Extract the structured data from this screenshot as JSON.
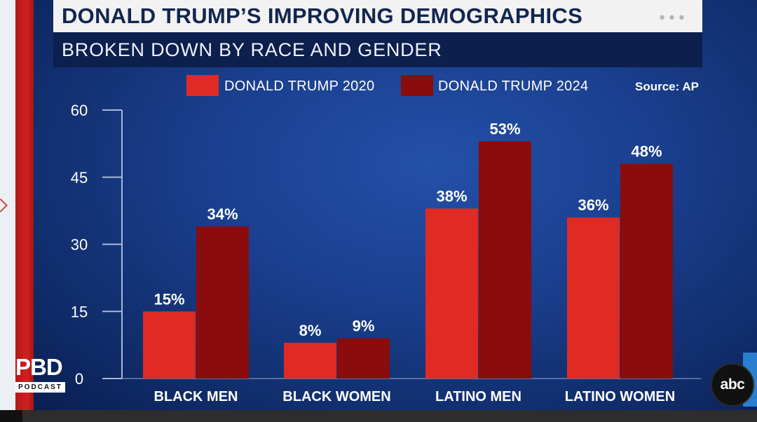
{
  "header": {
    "title": "DONALD TRUMP’S IMPROVING DEMOGRAPHICS",
    "subtitle": "BROKEN DOWN BY RACE AND GENDER",
    "more_icon": "more-dots-icon",
    "more_glyph": "•••"
  },
  "legend": [
    {
      "label": "DONALD TRUMP 2020",
      "color": "#e02a24"
    },
    {
      "label": "DONALD TRUMP 2024",
      "color": "#8a0c0c"
    }
  ],
  "source": "Source: AP",
  "chart_data": {
    "type": "bar",
    "title": "DONALD TRUMP’S IMPROVING DEMOGRAPHICS",
    "subtitle": "BROKEN DOWN BY RACE AND GENDER",
    "categories": [
      "BLACK MEN",
      "BLACK WOMEN",
      "LATINO MEN",
      "LATINO WOMEN"
    ],
    "series": [
      {
        "name": "DONALD TRUMP 2020",
        "values": [
          15,
          8,
          38,
          36
        ],
        "labels": [
          "15%",
          "8%",
          "38%",
          "36%"
        ],
        "color": "#e02a24"
      },
      {
        "name": "DONALD TRUMP 2024",
        "values": [
          34,
          9,
          53,
          48
        ],
        "labels": [
          "34%",
          "9%",
          "53%",
          "48%"
        ],
        "color": "#8a0c0c"
      }
    ],
    "y_ticks": [
      "0",
      "15",
      "30",
      "45",
      "60"
    ],
    "ylim": [
      0,
      60
    ],
    "xlabel": "",
    "ylabel": "",
    "grid": false,
    "legend_position": "top"
  },
  "logos": {
    "pbd_text": "PBD",
    "pbd_subtext": "PODCAST",
    "abc_text": "abc"
  }
}
